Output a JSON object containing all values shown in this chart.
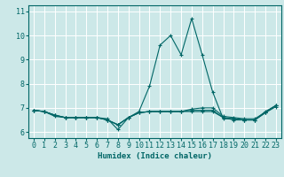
{
  "title": "",
  "xlabel": "Humidex (Indice chaleur)",
  "ylabel": "",
  "bg_color": "#cce8e8",
  "grid_color": "#ffffff",
  "line_color": "#006666",
  "xlim": [
    -0.5,
    23.5
  ],
  "ylim": [
    5.75,
    11.25
  ],
  "yticks": [
    6,
    7,
    8,
    9,
    10,
    11
  ],
  "xticks": [
    0,
    1,
    2,
    3,
    4,
    5,
    6,
    7,
    8,
    9,
    10,
    11,
    12,
    13,
    14,
    15,
    16,
    17,
    18,
    19,
    20,
    21,
    22,
    23
  ],
  "series": [
    [
      6.9,
      6.85,
      6.65,
      6.6,
      6.6,
      6.6,
      6.6,
      6.55,
      6.1,
      6.6,
      6.85,
      7.9,
      9.6,
      10.0,
      9.2,
      10.7,
      9.2,
      7.65,
      6.55,
      6.55,
      6.5,
      6.5,
      6.85,
      7.1
    ],
    [
      6.9,
      6.85,
      6.7,
      6.6,
      6.6,
      6.6,
      6.6,
      6.5,
      6.3,
      6.6,
      6.8,
      6.85,
      6.85,
      6.85,
      6.85,
      6.85,
      6.85,
      6.85,
      6.6,
      6.5,
      6.5,
      6.5,
      6.8,
      7.1
    ],
    [
      6.9,
      6.85,
      6.7,
      6.6,
      6.6,
      6.6,
      6.6,
      6.5,
      6.3,
      6.6,
      6.8,
      6.85,
      6.85,
      6.85,
      6.85,
      6.9,
      6.9,
      6.9,
      6.6,
      6.55,
      6.5,
      6.5,
      6.8,
      7.05
    ],
    [
      6.9,
      6.85,
      6.7,
      6.6,
      6.6,
      6.6,
      6.6,
      6.5,
      6.3,
      6.6,
      6.8,
      6.85,
      6.85,
      6.85,
      6.85,
      6.95,
      7.0,
      7.0,
      6.65,
      6.6,
      6.55,
      6.55,
      6.82,
      7.1
    ]
  ],
  "tick_fontsize": 6,
  "xlabel_fontsize": 6.5
}
